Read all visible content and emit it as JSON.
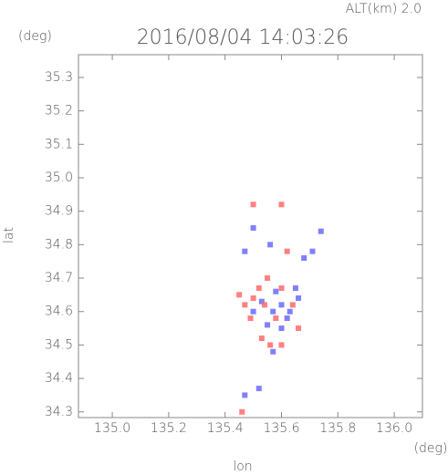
{
  "chart_data": {
    "type": "scatter",
    "title": "2016/08/04 14:03:26",
    "altitude_label": "ALT(km) 2.0",
    "x_label": "lon",
    "y_label": "lat",
    "x_unit": "(deg)",
    "y_unit": "(deg)",
    "xlim": [
      134.88,
      136.1
    ],
    "ylim": [
      34.283,
      35.368
    ],
    "xticks": [
      {
        "value": 135,
        "label": "135.0"
      },
      135.2,
      135.4,
      135.6,
      135.8,
      {
        "value": 136,
        "label": "136.0"
      }
    ],
    "yticks": [
      34.3,
      34.4,
      34.5,
      34.6,
      34.7,
      34.8,
      34.9,
      {
        "value": 35,
        "label": "35.0"
      },
      35.1,
      35.2,
      35.3
    ],
    "series": [
      {
        "color": "#6a6aff",
        "x": [
          135.57,
          135.6,
          135.62,
          135.55,
          135.65,
          135.66,
          135.6,
          135.71,
          135.74,
          135.5,
          135.56,
          135.47,
          135.52,
          135.58,
          135.53,
          135.63,
          135.5,
          135.57,
          135.68,
          135.47
        ],
        "y": [
          34.6,
          34.62,
          34.58,
          34.56,
          34.67,
          34.64,
          34.55,
          34.78,
          34.84,
          34.85,
          34.8,
          34.35,
          34.37,
          34.66,
          34.63,
          34.6,
          34.6,
          34.48,
          34.76,
          34.78
        ]
      },
      {
        "color": "#ff6a6a",
        "x": [
          135.5,
          135.52,
          135.47,
          135.55,
          135.6,
          135.53,
          135.56,
          135.49,
          135.64,
          135.58,
          135.46,
          135.5,
          135.6,
          135.62,
          135.54,
          135.45,
          135.66,
          135.6
        ],
        "y": [
          34.64,
          34.67,
          34.62,
          34.7,
          34.67,
          34.52,
          34.5,
          34.58,
          34.62,
          34.58,
          34.3,
          34.92,
          34.92,
          34.78,
          34.62,
          34.65,
          34.55,
          34.5
        ]
      }
    ]
  }
}
